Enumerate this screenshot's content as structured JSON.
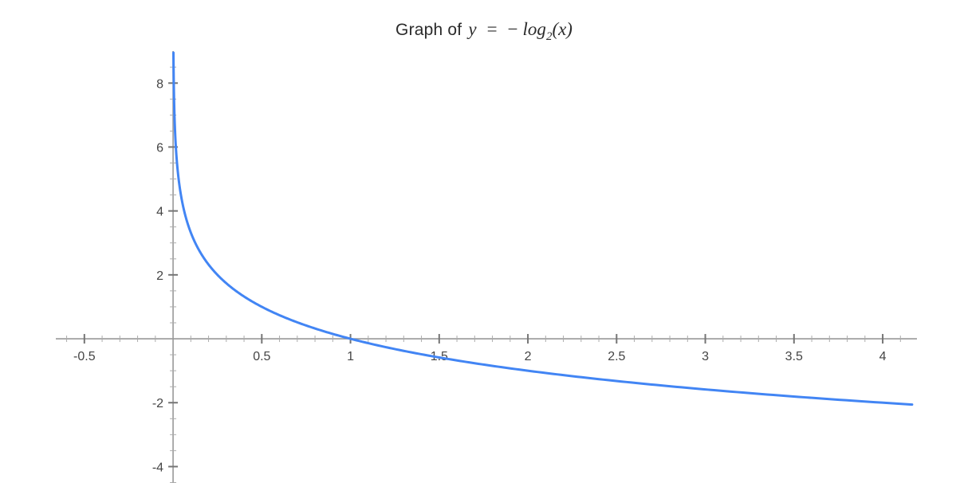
{
  "title": {
    "prefix": "Graph of",
    "math_lhs": "y",
    "math_eq": "=",
    "math_minus": "−",
    "math_func": "log",
    "math_sub": "2",
    "math_arg": "(x)"
  },
  "chart_data": {
    "type": "line",
    "title": "Graph of y = −log₂(x)",
    "function": "y = -log2(x)",
    "xlabel": "",
    "ylabel": "",
    "xlim": [
      -0.661,
      4.193
    ],
    "ylim": [
      -4.513,
      8.954
    ],
    "x_major_ticks": [
      -0.5,
      0.5,
      1,
      1.5,
      2,
      2.5,
      3,
      3.5,
      4
    ],
    "x_major_tick_labels": [
      "-0.5",
      "0.5",
      "1",
      "1.5",
      "2",
      "2.5",
      "3",
      "3.5",
      "4"
    ],
    "x_minor_step": 0.1,
    "y_major_ticks": [
      8,
      6,
      4,
      2,
      -2,
      -4
    ],
    "y_major_tick_labels": [
      "8",
      "6",
      "4",
      "2",
      "-2",
      "-4"
    ],
    "y_minor_step": 0.5,
    "curve_x_domain": [
      0.00202,
      4.195
    ],
    "key_points": [
      {
        "x": 0.0625,
        "y": 4
      },
      {
        "x": 0.125,
        "y": 3
      },
      {
        "x": 0.25,
        "y": 2
      },
      {
        "x": 0.5,
        "y": 1
      },
      {
        "x": 1,
        "y": 0
      },
      {
        "x": 2,
        "y": -1
      },
      {
        "x": 4,
        "y": -2
      }
    ],
    "grid": false,
    "legend_position": "none",
    "colors": {
      "curve": "#4285f4",
      "axis": "#999999",
      "major_tick": "#757575",
      "minor_tick": "#ababab",
      "tick_label": "#454545",
      "title_text": "#2b2b2b",
      "background": "#ffffff"
    }
  }
}
